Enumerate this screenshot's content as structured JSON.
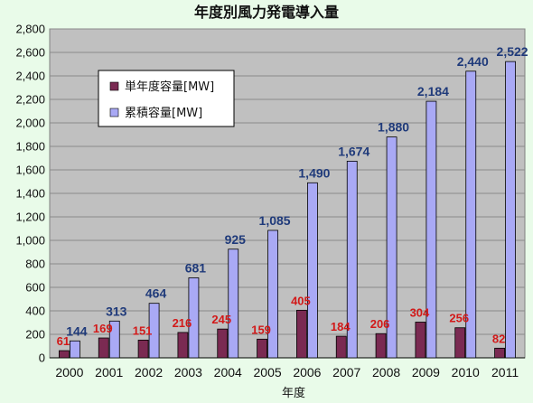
{
  "colors": {
    "page_bg": "#e9fbe9",
    "plot_bg": "#c0c0c0",
    "grid": "#8a8a8a",
    "annual_bar": "#7a2a52",
    "cumulative_bar": "#a9a9f5",
    "annual_label": "#d21919",
    "cumulative_label": "#1f3a7a"
  },
  "chart_data": {
    "type": "bar",
    "title": "年度別風力発電導入量",
    "xlabel": "年度",
    "ylabel": "",
    "ylim": [
      0,
      2800
    ],
    "ytick_step": 200,
    "ytick_labels": [
      "0",
      "200",
      "400",
      "600",
      "800",
      "1,000",
      "1,200",
      "1,400",
      "1,600",
      "1,800",
      "2,000",
      "2,200",
      "2,400",
      "2,600",
      "2,800"
    ],
    "grid": true,
    "legend_position": "top-left",
    "categories": [
      "2000",
      "2001",
      "2002",
      "2003",
      "2004",
      "2005",
      "2006",
      "2007",
      "2008",
      "2009",
      "2010",
      "2011"
    ],
    "series": [
      {
        "name": "単年度容量[MW]",
        "values": [
          61,
          169,
          151,
          216,
          245,
          159,
          405,
          184,
          206,
          304,
          256,
          82
        ],
        "labels": [
          "61",
          "169",
          "151",
          "216",
          "245",
          "159",
          "405",
          "184",
          "206",
          "304",
          "256",
          "82"
        ]
      },
      {
        "name": "累積容量[MW]",
        "values": [
          144,
          313,
          464,
          681,
          925,
          1085,
          1490,
          1674,
          1880,
          2184,
          2440,
          2522
        ],
        "labels": [
          "144",
          "313",
          "464",
          "681",
          "925",
          "1,085",
          "1,490",
          "1,674",
          "1,880",
          "2,184",
          "2,440",
          "2,522"
        ]
      }
    ]
  }
}
